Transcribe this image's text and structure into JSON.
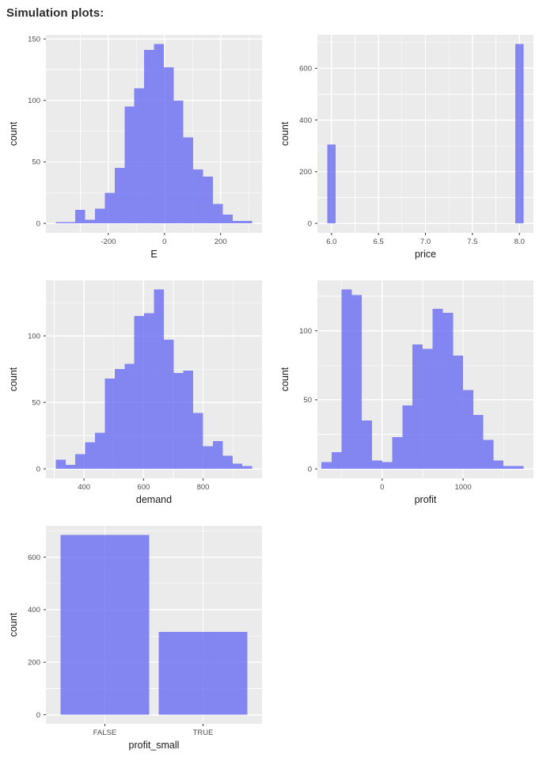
{
  "header": {
    "title": "Simulation plots:"
  },
  "style": {
    "bar_fill": "#696DF2",
    "bar_opacity": 0.8,
    "panel_bg": "#EBEBEB",
    "grid_color": "#FFFFFF",
    "tick_mark_color": "#333333",
    "tick_label_color": "#4D4D4D",
    "axis_title_color": "#1A1A1A",
    "header_color": "#2D2D2D"
  },
  "chart_data": [
    {
      "type": "bar",
      "subtype": "histogram",
      "name": "histogram-e",
      "xlabel": "E",
      "ylabel": "count",
      "x_domain": [
        -422.5,
        347.5
      ],
      "y_domain": [
        -7.65,
        153.3
      ],
      "x_ticks": [
        -200,
        0,
        200
      ],
      "x_tick_labels": [
        "-200",
        "0",
        "200"
      ],
      "x_minor": [
        -300,
        -100,
        100,
        300
      ],
      "y_ticks": [
        0,
        50,
        100,
        150
      ],
      "y_tick_labels": [
        "0",
        "50",
        "100",
        "150"
      ],
      "y_minor": [
        25,
        75,
        125
      ],
      "bins": {
        "start": -387.5,
        "width": 35,
        "counts": [
          1,
          1,
          11,
          3,
          12,
          25,
          45,
          95,
          110,
          141,
          146,
          127,
          100,
          70,
          44,
          38,
          16,
          7,
          2,
          2
        ]
      }
    },
    {
      "type": "bar",
      "subtype": "histogram",
      "name": "histogram-price",
      "xlabel": "price",
      "ylabel": "count",
      "x_domain": [
        5.85,
        8.15
      ],
      "y_domain": [
        -36.5,
        729.75
      ],
      "x_ticks": [
        6.0,
        6.5,
        7.0,
        7.5,
        8.0
      ],
      "x_tick_labels": [
        "6.0",
        "6.5",
        "7.0",
        "7.5",
        "8.0"
      ],
      "x_minor": [
        6.25,
        6.75,
        7.25,
        7.75
      ],
      "y_ticks": [
        0,
        200,
        400,
        600
      ],
      "y_tick_labels": [
        "0",
        "200",
        "400",
        "600"
      ],
      "y_minor": [
        100,
        300,
        500,
        700
      ],
      "bars": [
        {
          "x": 6.0,
          "w": 0.09,
          "count": 305
        },
        {
          "x": 8.0,
          "w": 0.09,
          "count": 695
        }
      ]
    },
    {
      "type": "bar",
      "subtype": "histogram",
      "name": "histogram-demand",
      "xlabel": "demand",
      "ylabel": "count",
      "x_domain": [
        272,
        998
      ],
      "y_domain": [
        -7.1,
        141.75
      ],
      "x_ticks": [
        400,
        600,
        800
      ],
      "x_tick_labels": [
        "400",
        "600",
        "800"
      ],
      "x_minor": [
        300,
        500,
        700,
        900
      ],
      "y_ticks": [
        0,
        50,
        100
      ],
      "y_tick_labels": [
        "0",
        "50",
        "100"
      ],
      "y_minor": [
        25,
        75,
        125
      ],
      "bins": {
        "start": 305,
        "width": 33,
        "counts": [
          7,
          3,
          11,
          20,
          27,
          68,
          75,
          79,
          115,
          117,
          135,
          97,
          72,
          74,
          42,
          17,
          21,
          10,
          4,
          2
        ]
      }
    },
    {
      "type": "bar",
      "subtype": "histogram",
      "name": "histogram-profit",
      "xlabel": "profit",
      "ylabel": "count",
      "x_domain": [
        -800,
        1870
      ],
      "y_domain": [
        -6.8,
        136.5
      ],
      "x_ticks": [
        0,
        1000
      ],
      "x_tick_labels": [
        "0",
        "1000"
      ],
      "x_minor": [
        -500,
        500,
        1500
      ],
      "y_ticks": [
        0,
        50,
        100
      ],
      "y_tick_labels": [
        "0",
        "50",
        "100"
      ],
      "y_minor": [
        25,
        75,
        125
      ],
      "bins": {
        "start": -750,
        "width": 125,
        "counts": [
          5,
          12,
          130,
          126,
          35,
          6,
          5,
          23,
          46,
          90,
          87,
          116,
          113,
          82,
          57,
          39,
          21,
          6,
          2,
          2
        ]
      }
    },
    {
      "type": "bar",
      "subtype": "categorical",
      "name": "bar-chart-profit-small",
      "xlabel": "profit_small",
      "ylabel": "count",
      "x_domain": [
        0.4,
        2.6
      ],
      "y_domain": [
        -34.25,
        719.25
      ],
      "categories": [
        "FALSE",
        "TRUE"
      ],
      "values": [
        685,
        315
      ],
      "bar_width": 0.9,
      "y_ticks": [
        0,
        200,
        400,
        600
      ],
      "y_tick_labels": [
        "0",
        "200",
        "400",
        "600"
      ],
      "y_minor": [
        100,
        300,
        500,
        700
      ]
    }
  ]
}
